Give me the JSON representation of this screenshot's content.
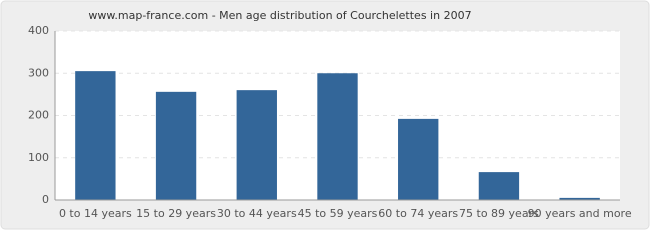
{
  "chart_data": {
    "type": "bar",
    "title": "www.map-france.com - Men age distribution of Courchelettes in 2007",
    "categories": [
      "0 to 14 years",
      "15 to 29 years",
      "30 to 44 years",
      "45 to 59 years",
      "60 to 74 years",
      "75 to 89 years",
      "90 years and more"
    ],
    "values": [
      305,
      256,
      260,
      300,
      192,
      66,
      5
    ],
    "color": "#336699",
    "ylim": [
      0,
      400
    ],
    "yticks": [
      0,
      100,
      200,
      300,
      400
    ],
    "grid": true
  }
}
